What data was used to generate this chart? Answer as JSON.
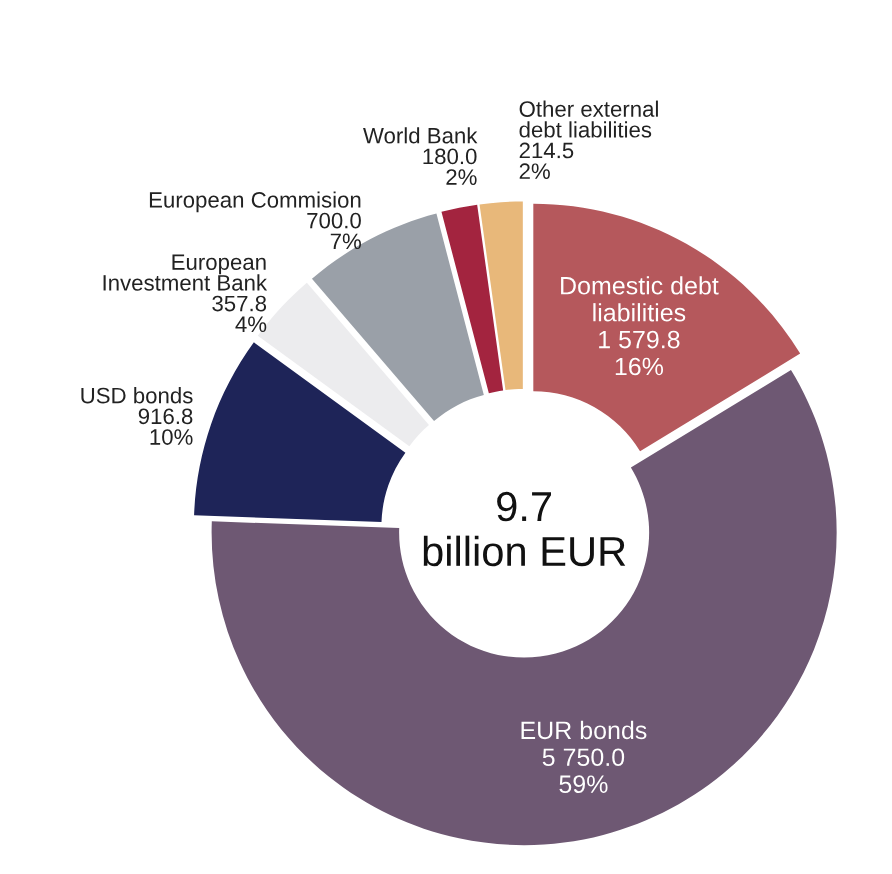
{
  "chart_data": {
    "type": "donut",
    "categories": [
      "Domestic debt\nliabilities",
      "EUR bonds",
      "USD bonds",
      "European\nInvestment Bank",
      "European Commision",
      "World Bank",
      "Other external\ndebt liabilities"
    ],
    "values": [
      1579.8,
      5750.0,
      916.8,
      357.8,
      700.0,
      180.0,
      214.5
    ],
    "colors": [
      "#b5585c",
      "#6e5873",
      "#1e2458",
      "#ececee",
      "#9aa0a8",
      "#a3243f",
      "#e8b87a"
    ],
    "value_labels": [
      "1 579.8\n16%",
      "5 750.0\n59%",
      "916.8\n10%",
      "357.8\n4%",
      "700.0\n7%",
      "180.0\n2%",
      "214.5\n2%"
    ],
    "annotations": [
      "9.7\nbillion EUR"
    ],
    "legend": false
  }
}
